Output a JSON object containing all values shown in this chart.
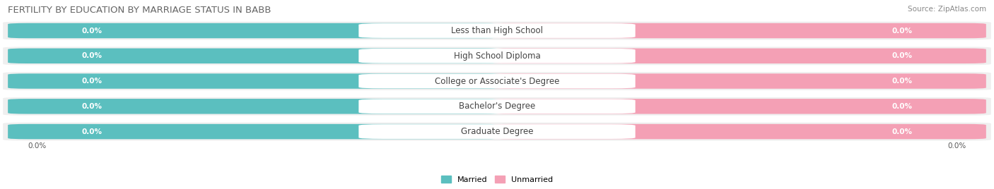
{
  "title": "FERTILITY BY EDUCATION BY MARRIAGE STATUS IN BABB",
  "source": "Source: ZipAtlas.com",
  "categories": [
    "Less than High School",
    "High School Diploma",
    "College or Associate's Degree",
    "Bachelor's Degree",
    "Graduate Degree"
  ],
  "married_values": [
    0.0,
    0.0,
    0.0,
    0.0,
    0.0
  ],
  "unmarried_values": [
    0.0,
    0.0,
    0.0,
    0.0,
    0.0
  ],
  "married_color": "#5BBFBF",
  "unmarried_color": "#F4A0B5",
  "row_bg_color": "#EFEFEF",
  "title_fontsize": 9.5,
  "source_fontsize": 7.5,
  "label_fontsize": 7.5,
  "category_fontsize": 8.5,
  "value_label": "0.0%",
  "x_left_label": "0.0%",
  "x_right_label": "0.0%",
  "legend_married": "Married",
  "legend_unmarried": "Unmarried"
}
